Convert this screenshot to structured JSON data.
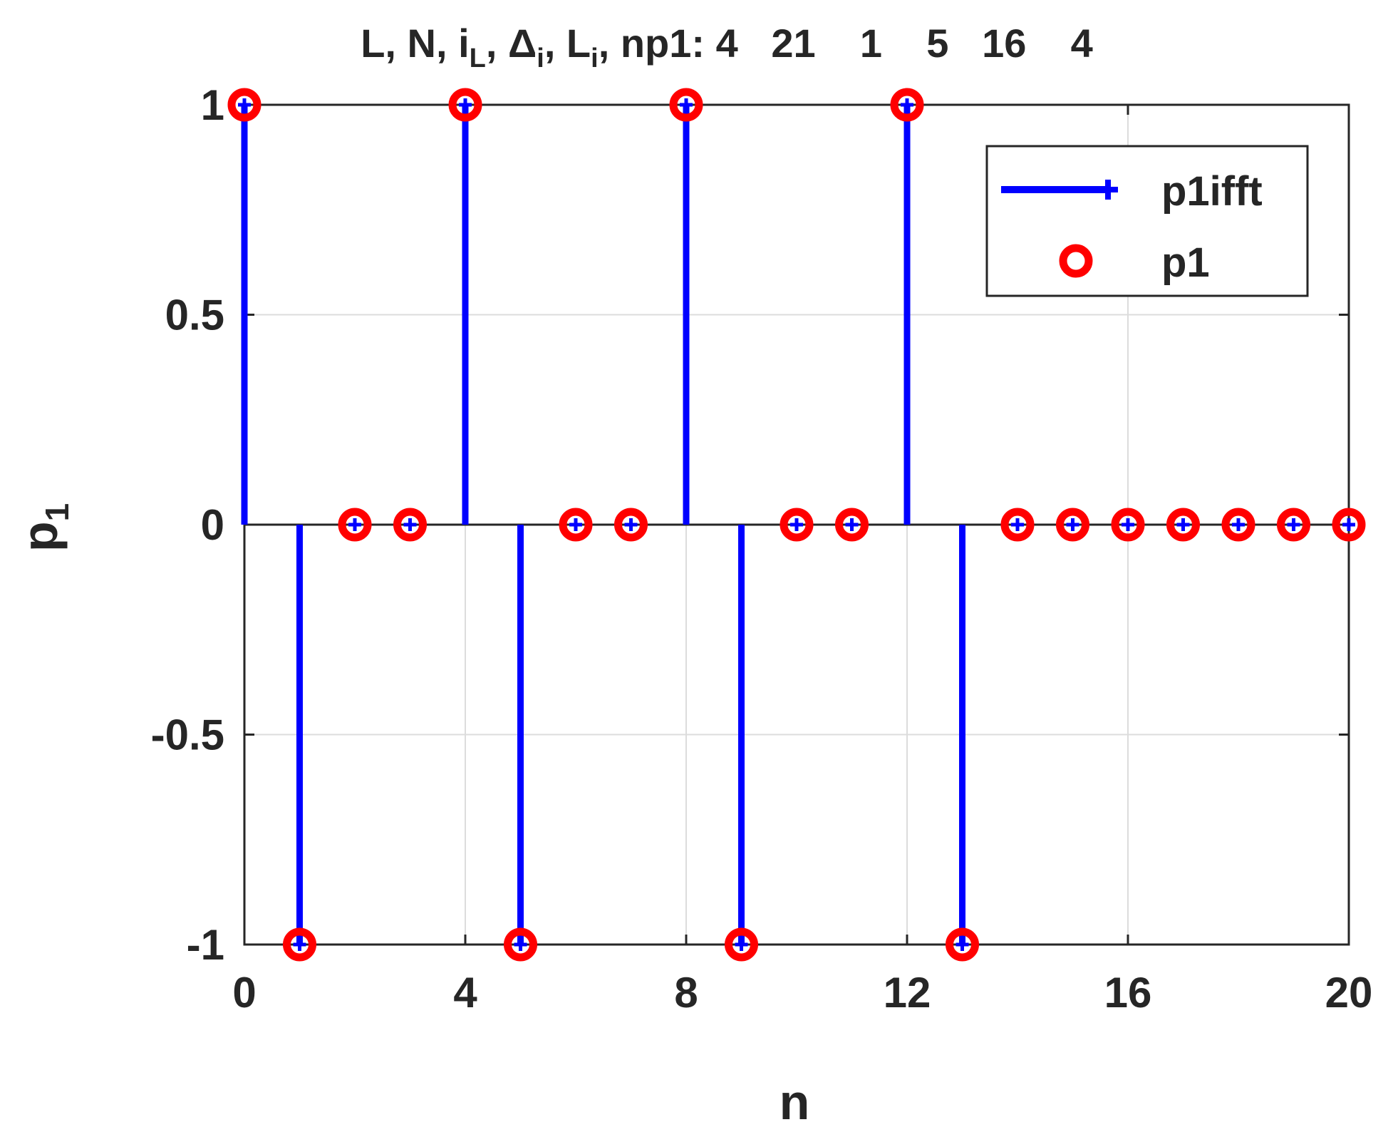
{
  "chart_data": {
    "type": "stem",
    "title_segments": [
      {
        "t": "L, N, i"
      },
      {
        "t": "L",
        "sub": true
      },
      {
        "t": ", Δ"
      },
      {
        "t": "i",
        "sub": true
      },
      {
        "t": ", L"
      },
      {
        "t": "i",
        "sub": true
      },
      {
        "t": ", np1: 4   21    1    5   16    4"
      }
    ],
    "xlabel": "n",
    "ylabel_main": "p",
    "ylabel_sub": "1",
    "xlim": [
      0,
      20
    ],
    "ylim": [
      -1,
      1
    ],
    "xticks": [
      0,
      4,
      8,
      12,
      16,
      20
    ],
    "yticks": [
      -1,
      -0.5,
      0,
      0.5,
      1
    ],
    "xtick_labels": [
      "0",
      "4",
      "8",
      "12",
      "16",
      "20"
    ],
    "ytick_labels": [
      "-1",
      "-0.5",
      "0",
      "0.5",
      "1"
    ],
    "grid": true,
    "legend_position": "top-right",
    "x": [
      0,
      1,
      2,
      3,
      4,
      5,
      6,
      7,
      8,
      9,
      10,
      11,
      12,
      13,
      14,
      15,
      16,
      17,
      18,
      19,
      20
    ],
    "series": [
      {
        "name": "p1ifft",
        "style": "stem-plus",
        "color": "#0000ff",
        "values": [
          1,
          -1,
          0,
          0,
          1,
          -1,
          0,
          0,
          1,
          -1,
          0,
          0,
          1,
          -1,
          0,
          0,
          0,
          0,
          0,
          0,
          0
        ]
      },
      {
        "name": "p1",
        "style": "circle",
        "color": "#ff0000",
        "values": [
          1,
          -1,
          0,
          0,
          1,
          -1,
          0,
          0,
          1,
          -1,
          0,
          0,
          1,
          -1,
          0,
          0,
          0,
          0,
          0,
          0,
          0
        ]
      }
    ]
  }
}
